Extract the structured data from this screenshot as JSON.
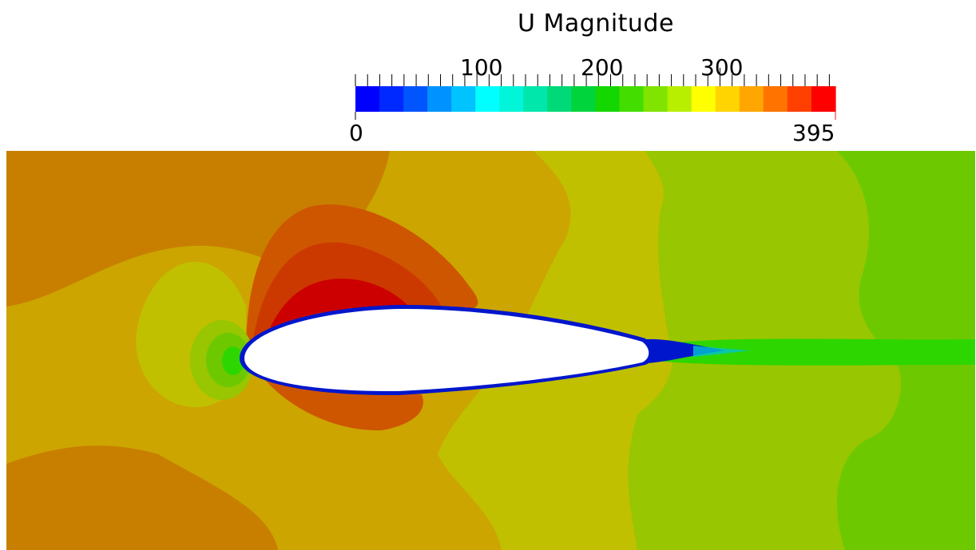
{
  "legend": {
    "title": "U Magnitude",
    "min_label": "0",
    "max_label": "395",
    "range": [
      0,
      395
    ],
    "major_ticks": [
      {
        "value": 100,
        "label": "100"
      },
      {
        "value": 200,
        "label": "200"
      },
      {
        "value": 300,
        "label": "300"
      }
    ],
    "minor_tick_step": 10,
    "colors": [
      "#0000ff",
      "#0029ff",
      "#0055ff",
      "#0093ff",
      "#00c3ff",
      "#00ffff",
      "#00f5d9",
      "#00e7ac",
      "#00d977",
      "#00d43c",
      "#14d600",
      "#44dd00",
      "#80e300",
      "#b8ee00",
      "#ffff00",
      "#ffd400",
      "#ffa600",
      "#ff7300",
      "#ff4000",
      "#ff0000"
    ]
  },
  "field": {
    "quantity": "U Magnitude",
    "colors": {
      "dark_orange": "#c87f00",
      "golden": "#cca500",
      "olive": "#c0c000",
      "yellow_green": "#98c600",
      "green": "#6ec800",
      "red_orange": "#ce5600",
      "orange_red": "#cc3900",
      "red": "#cc0000",
      "wake_green": "#2ed600",
      "wall_blue": "#0016cc",
      "airfoil": "#ffffff"
    }
  }
}
